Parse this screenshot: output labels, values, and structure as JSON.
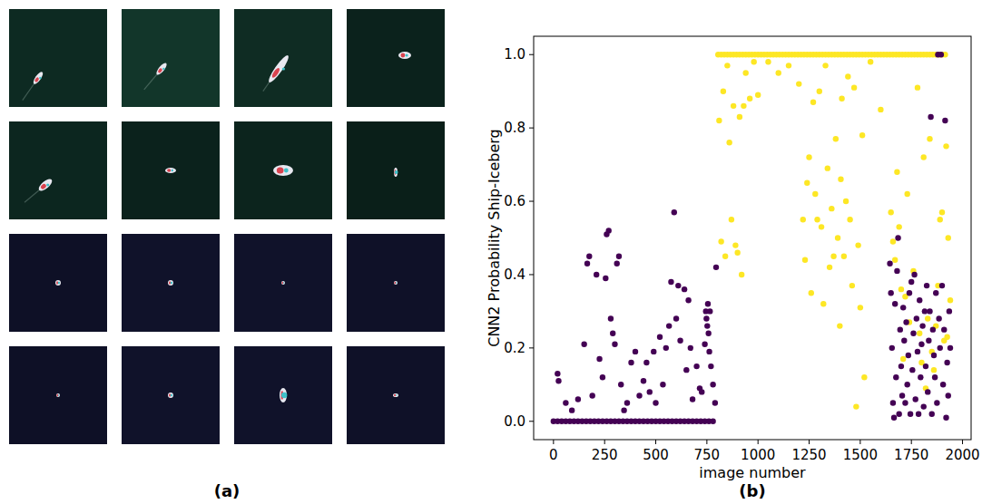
{
  "image_panel": {
    "label": "(a)"
  },
  "chart_data": {
    "type": "scatter",
    "panel_label": "(b)",
    "x_label": "image number",
    "y_label": "CNN2 Probability Ship-Iceberg",
    "xlim": [
      -97,
      2042
    ],
    "ylim": [
      -0.05,
      1.05
    ],
    "xticks": [
      0,
      250,
      500,
      750,
      1000,
      1250,
      1500,
      1750,
      2000
    ],
    "yticks": [
      {
        "value": 0,
        "label": "0.0"
      },
      {
        "value": 0.2,
        "label": "0.2"
      },
      {
        "value": 0.4,
        "label": "0.4"
      },
      {
        "value": 0.6,
        "label": "0.6"
      },
      {
        "value": 0.8,
        "label": "0.8"
      },
      {
        "value": 1,
        "label": "1.0"
      }
    ],
    "grid": false,
    "series": [
      {
        "color": "#fde725",
        "marker": "circle",
        "x": [
          805,
          820,
          835,
          850,
          865,
          880,
          895,
          910,
          925,
          940,
          955,
          970,
          985,
          1000,
          1015,
          1030,
          1045,
          1060,
          1075,
          1090,
          1105,
          1120,
          1135,
          1150,
          1165,
          1180,
          1195,
          1210,
          1225,
          1240,
          1255,
          1270,
          1285,
          1300,
          1315,
          1330,
          1345,
          1360,
          1375,
          1390,
          1405,
          1420,
          1435,
          1450,
          1465,
          1480,
          1495,
          1510,
          1525,
          1540,
          1555,
          1570,
          1585,
          1600,
          1615,
          1630,
          1645,
          1660,
          1675,
          1690,
          1705,
          1720,
          1735,
          1750,
          1765,
          1780,
          1795,
          1810,
          1825,
          1840,
          1855,
          1870,
          1885,
          1900,
          1915,
          810,
          820,
          830,
          840,
          850,
          860,
          870,
          880,
          890,
          900,
          910,
          920,
          930,
          940,
          960,
          980,
          1000,
          1050,
          1100,
          1150,
          1200,
          1220,
          1230,
          1240,
          1250,
          1260,
          1270,
          1280,
          1290,
          1300,
          1310,
          1320,
          1330,
          1340,
          1350,
          1360,
          1370,
          1380,
          1390,
          1400,
          1405,
          1410,
          1420,
          1430,
          1440,
          1450,
          1460,
          1470,
          1480,
          1490,
          1500,
          1510,
          1520,
          1550,
          1600,
          1650,
          1660,
          1670,
          1680,
          1690,
          1700,
          1710,
          1720,
          1730,
          1740,
          1760,
          1780,
          1790,
          1800,
          1810,
          1820,
          1830,
          1840,
          1850,
          1860,
          1870,
          1880,
          1890,
          1900,
          1910,
          1920,
          1930,
          1940,
          1925
        ],
        "values": [
          1,
          1,
          1,
          1,
          1,
          1,
          1,
          1,
          1,
          1,
          1,
          1,
          1,
          1,
          1,
          1,
          1,
          1,
          1,
          1,
          1,
          1,
          1,
          1,
          1,
          1,
          1,
          1,
          1,
          1,
          1,
          1,
          1,
          1,
          1,
          1,
          1,
          1,
          1,
          1,
          1,
          1,
          1,
          1,
          1,
          1,
          1,
          1,
          1,
          1,
          1,
          1,
          1,
          1,
          1,
          1,
          1,
          1,
          1,
          1,
          1,
          1,
          1,
          1,
          1,
          1,
          1,
          1,
          1,
          1,
          1,
          1,
          1,
          1,
          1,
          0.82,
          0.49,
          0.9,
          0.45,
          0.97,
          0.76,
          0.55,
          0.86,
          0.48,
          0.46,
          0.83,
          0.4,
          0.86,
          0.95,
          0.88,
          0.98,
          0.89,
          0.98,
          0.95,
          0.97,
          0.92,
          0.55,
          0.44,
          0.65,
          0.72,
          0.35,
          0.87,
          0.62,
          0.55,
          0.9,
          0.53,
          0.32,
          0.97,
          0.69,
          0.42,
          0.58,
          0.45,
          0.77,
          0.5,
          0.26,
          0.66,
          0.88,
          0.45,
          0.6,
          0.94,
          0.55,
          0.37,
          0.91,
          0.04,
          0.48,
          0.31,
          0.78,
          0.12,
          0.98,
          0.85,
          0.57,
          0.49,
          0.44,
          0.68,
          0.53,
          0.36,
          0.17,
          0.34,
          0.62,
          0.27,
          0.41,
          0.91,
          0.24,
          0.16,
          0.72,
          0.09,
          0.28,
          0.77,
          0.19,
          0.14,
          0.26,
          0.37,
          0.55,
          0.57,
          0.22,
          0.75,
          0.5,
          0.33,
          0.23
        ]
      },
      {
        "color": "#440154",
        "marker": "circle",
        "x": [
          0,
          20,
          40,
          60,
          80,
          100,
          120,
          140,
          160,
          180,
          200,
          220,
          240,
          260,
          280,
          300,
          320,
          340,
          360,
          380,
          400,
          420,
          440,
          460,
          480,
          500,
          520,
          540,
          560,
          580,
          600,
          620,
          640,
          660,
          680,
          700,
          720,
          740,
          760,
          780,
          20,
          25,
          60,
          90,
          120,
          150,
          165,
          175,
          190,
          210,
          225,
          240,
          255,
          260,
          270,
          280,
          290,
          300,
          310,
          320,
          330,
          345,
          360,
          380,
          400,
          420,
          440,
          455,
          470,
          490,
          500,
          520,
          535,
          550,
          565,
          575,
          590,
          600,
          610,
          620,
          640,
          650,
          660,
          670,
          680,
          700,
          715,
          725,
          740,
          745,
          748,
          752,
          755,
          758,
          762,
          765,
          770,
          780,
          790,
          795,
          1645,
          1650,
          1655,
          1660,
          1665,
          1670,
          1675,
          1680,
          1685,
          1690,
          1695,
          1700,
          1705,
          1710,
          1715,
          1720,
          1725,
          1730,
          1735,
          1740,
          1745,
          1750,
          1755,
          1760,
          1765,
          1770,
          1775,
          1780,
          1785,
          1790,
          1795,
          1800,
          1805,
          1810,
          1815,
          1820,
          1825,
          1830,
          1835,
          1840,
          1845,
          1850,
          1855,
          1860,
          1865,
          1870,
          1875,
          1880,
          1885,
          1890,
          1895,
          1900,
          1905,
          1910,
          1915,
          1920,
          1925,
          1930,
          1935,
          1940
        ],
        "values": [
          0,
          0,
          0,
          0,
          0,
          0,
          0,
          0,
          0,
          0,
          0,
          0,
          0,
          0,
          0,
          0,
          0,
          0,
          0,
          0,
          0,
          0,
          0,
          0,
          0,
          0,
          0,
          0,
          0,
          0,
          0,
          0,
          0,
          0,
          0,
          0,
          0,
          0,
          0,
          0,
          0.13,
          0.11,
          0.05,
          0.03,
          0.06,
          0.21,
          0.43,
          0.45,
          0.07,
          0.4,
          0.17,
          0.12,
          0.39,
          0.51,
          0.52,
          0.28,
          0.24,
          0.21,
          0.43,
          0.45,
          0.1,
          0.03,
          0.05,
          0.16,
          0.19,
          0.07,
          0.11,
          0.16,
          0.08,
          0.19,
          0.05,
          0.23,
          0.1,
          0.2,
          0.26,
          0.38,
          0.57,
          0.28,
          0.37,
          0.22,
          0.36,
          0.14,
          0.33,
          0.2,
          0.06,
          0.15,
          0.09,
          0.08,
          0.21,
          0.3,
          0.28,
          0.26,
          0.32,
          0.24,
          0.19,
          0.3,
          0.15,
          0.1,
          0.05,
          0.42,
          0.43,
          0.35,
          0.2,
          0.05,
          0.01,
          0.32,
          0.12,
          0.41,
          0.5,
          0.02,
          0.25,
          0.15,
          0.07,
          0.31,
          0.22,
          0.05,
          0.27,
          0.1,
          0.18,
          0.35,
          0.02,
          0.38,
          0.14,
          0.24,
          0.4,
          0.06,
          0.28,
          0.19,
          0.02,
          0.33,
          0.12,
          0.21,
          0.26,
          0.04,
          0.3,
          0.15,
          0.37,
          0.08,
          0.22,
          0.3,
          0.83,
          0.02,
          0.25,
          0.18,
          0.12,
          0.35,
          0.05,
          1.0,
          0.28,
          0.2,
          1.0,
          0.37,
          0.1,
          0.25,
          0.82,
          0.01,
          0.16,
          0.07,
          0.3,
          0.2
        ]
      }
    ]
  }
}
